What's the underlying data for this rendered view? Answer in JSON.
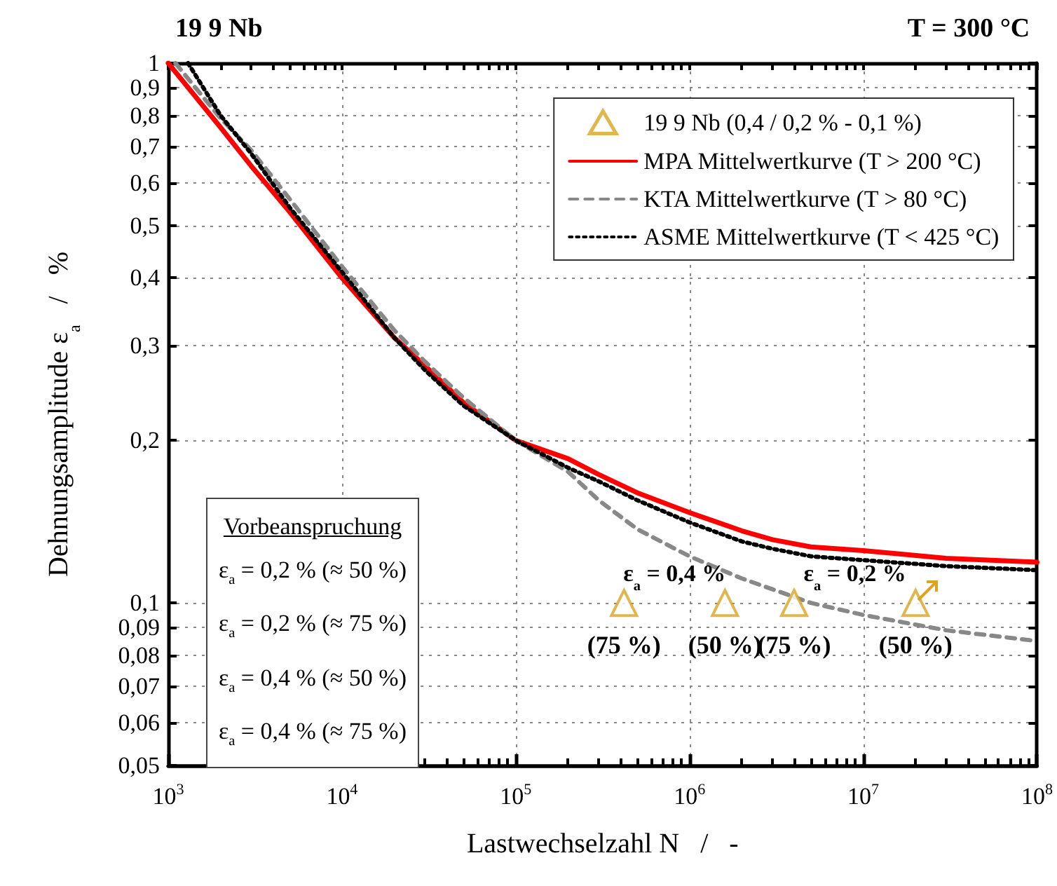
{
  "chart_data": {
    "type": "line",
    "title": "19 9 Nb",
    "subtitle": "T = 300 °C",
    "xlabel": "Lastwechselzahl N   /   -",
    "ylabel": "Dehnungsamplitude ε$_{a}$   /   %",
    "log": "xy",
    "grid": true,
    "legend": "top right",
    "xlim": [
      1000,
      100000000
    ],
    "xticks": [
      {
        "value": 1000,
        "label": "10$^{3}$"
      },
      {
        "value": 2000,
        "label": null
      },
      {
        "value": 3000,
        "label": null
      },
      {
        "value": 4000,
        "label": null
      },
      {
        "value": 5000,
        "label": null
      },
      {
        "value": 6000,
        "label": null
      },
      {
        "value": 7000,
        "label": null
      },
      {
        "value": 8000,
        "label": null
      },
      {
        "value": 9000,
        "label": null
      },
      {
        "value": 10000,
        "label": "10$^{4}$"
      },
      {
        "value": 20000,
        "label": null
      },
      {
        "value": 30000,
        "label": null
      },
      {
        "value": 40000,
        "label": null
      },
      {
        "value": 50000,
        "label": null
      },
      {
        "value": 60000,
        "label": null
      },
      {
        "value": 70000,
        "label": null
      },
      {
        "value": 80000,
        "label": null
      },
      {
        "value": 90000,
        "label": null
      },
      {
        "value": 100000,
        "label": "10$^{5}$"
      },
      {
        "value": 200000,
        "label": null
      },
      {
        "value": 300000,
        "label": null
      },
      {
        "value": 400000,
        "label": null
      },
      {
        "value": 500000,
        "label": null
      },
      {
        "value": 600000,
        "label": null
      },
      {
        "value": 700000,
        "label": null
      },
      {
        "value": 800000,
        "label": null
      },
      {
        "value": 900000,
        "label": null
      },
      {
        "value": 1000000,
        "label": "10$^{6}$"
      },
      {
        "value": 2000000,
        "label": null
      },
      {
        "value": 3000000,
        "label": null
      },
      {
        "value": 4000000,
        "label": null
      },
      {
        "value": 5000000,
        "label": null
      },
      {
        "value": 6000000,
        "label": null
      },
      {
        "value": 7000000,
        "label": null
      },
      {
        "value": 8000000,
        "label": null
      },
      {
        "value": 9000000,
        "label": null
      },
      {
        "value": 10000000,
        "label": "10$^{7}$"
      },
      {
        "value": 20000000,
        "label": null
      },
      {
        "value": 30000000,
        "label": null
      },
      {
        "value": 40000000,
        "label": null
      },
      {
        "value": 50000000,
        "label": null
      },
      {
        "value": 60000000,
        "label": null
      },
      {
        "value": 70000000,
        "label": null
      },
      {
        "value": 80000000,
        "label": null
      },
      {
        "value": 90000000,
        "label": null
      },
      {
        "value": 100000000,
        "label": "10$^{8}$"
      }
    ],
    "ylim": [
      0.05,
      1
    ],
    "yticks": [
      {
        "value": 0.05,
        "label": "0,05"
      },
      {
        "value": 0.06,
        "label": "0,06"
      },
      {
        "value": 0.07,
        "label": "0,07"
      },
      {
        "value": 0.08,
        "label": "0,08"
      },
      {
        "value": 0.09,
        "label": "0,09"
      },
      {
        "value": 0.1,
        "label": "0,1"
      },
      {
        "value": 0.2,
        "label": "0,2"
      },
      {
        "value": 0.3,
        "label": "0,3"
      },
      {
        "value": 0.4,
        "label": "0,4"
      },
      {
        "value": 0.5,
        "label": "0,5"
      },
      {
        "value": 0.6,
        "label": "0,6"
      },
      {
        "value": 0.7,
        "label": "0,7"
      },
      {
        "value": 0.8,
        "label": "0,8"
      },
      {
        "value": 0.9,
        "label": "0,9"
      },
      1
    ],
    "series": [
      {
        "name": "19 9 Nb (0,4 / 0,2 % - 0,1 %)",
        "type": "scatter",
        "marker": "triangle",
        "color": "#daa520",
        "x": [
          420000,
          1600000,
          4000000,
          20000000
        ],
        "values": [
          0.1,
          0.1,
          0.1,
          0.1
        ]
      },
      {
        "name": "MPA Mittelwertkurve (T > 200 °C)",
        "line_style": "solid",
        "marker": "none",
        "color": "#ff0000",
        "x": [
          1000,
          2000,
          3000,
          5000,
          10000,
          20000,
          30000,
          50000,
          100000,
          200000,
          300000,
          500000,
          1000000,
          2000000,
          3000000,
          5000000,
          10000000,
          30000000,
          100000000
        ],
        "values": [
          1,
          0.76,
          0.645,
          0.53,
          0.4,
          0.31,
          0.275,
          0.235,
          0.2,
          0.185,
          0.173,
          0.16,
          0.147,
          0.136,
          0.131,
          0.127,
          0.125,
          0.121,
          0.119
        ]
      },
      {
        "name": "KTA Mittelwertkurve (T > 80 °C)",
        "line_style": "dashed",
        "marker": "none",
        "color": "#888888",
        "x": [
          1100,
          2000,
          3000,
          5000,
          10000,
          20000,
          30000,
          50000,
          100000,
          200000,
          300000,
          500000,
          1000000,
          2000000,
          3000000,
          5000000,
          10000000,
          30000000,
          100000000
        ],
        "values": [
          1,
          0.79,
          0.69,
          0.56,
          0.42,
          0.32,
          0.28,
          0.24,
          0.2,
          0.175,
          0.155,
          0.137,
          0.122,
          0.111,
          0.106,
          0.1,
          0.095,
          0.089,
          0.085
        ]
      },
      {
        "name": "ASME Mittelwertkurve (T < 425 °C)",
        "line_style": "dotted",
        "marker": "none",
        "color": "#000000",
        "x": [
          1300,
          2000,
          3000,
          5000,
          10000,
          20000,
          30000,
          50000,
          100000,
          200000,
          300000,
          500000,
          1000000,
          2000000,
          3000000,
          5000000,
          10000000,
          30000000,
          100000000
        ],
        "values": [
          1,
          0.8,
          0.68,
          0.54,
          0.41,
          0.31,
          0.27,
          0.232,
          0.2,
          0.178,
          0.168,
          0.155,
          0.141,
          0.13,
          0.126,
          0.122,
          0.12,
          0.117,
          0.115
        ]
      }
    ],
    "annotations": [
      {
        "text": "(75 %)",
        "x": 420000,
        "y": 0.1
      },
      {
        "text": "(50 %)",
        "x": 1600000,
        "y": 0.1
      },
      {
        "text": "(75 %)",
        "x": 4000000,
        "y": 0.1
      },
      {
        "text": "(50 %)",
        "x": 20000000,
        "y": 0.1
      },
      "ε$_{a}$ = 0,4 %",
      "ε$_{a}$ = 0,2 %",
      "Vorbeanspruchung",
      "ε$_{a}$ = 0,2 % (≈ 50 %)",
      "ε$_{a}$ = 0,2 % (≈ 75 %)",
      "ε$_{a}$ = 0,4 % (≈ 50 %)",
      "ε$_{a}$ = 0,4 % (≈ 75 %)"
    ]
  }
}
